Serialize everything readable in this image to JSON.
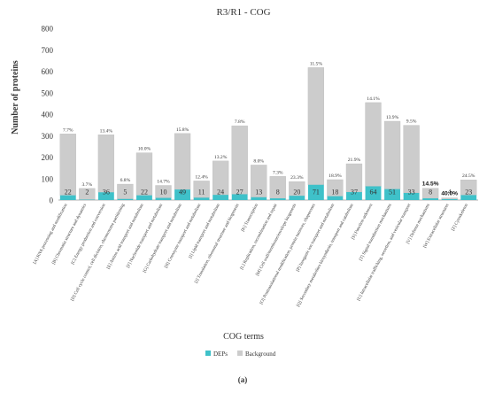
{
  "chart_data": {
    "type": "bar",
    "stacked": true,
    "title": "R3/R1 - COG",
    "xlabel": "COG terms",
    "ylabel": "Number of proteins",
    "ylim": [
      0,
      800
    ],
    "yticks": [
      0,
      100,
      200,
      300,
      400,
      500,
      600,
      700,
      800
    ],
    "grid": false,
    "legend_position": "bottom",
    "panel_label": "(a)",
    "categories": [
      "[A] RNA processing and modification",
      "[B] Chromatin structure and dynamics",
      "[C] Energy production and conversion",
      "[D] Cell cycle control, cell division, chromosome partitioning",
      "[E] Amino acid transport and metabolism",
      "[F] Nucleotide transport and metabolism",
      "[G] Carbohydrate transport and metabolism",
      "[H] Coenzyme transport and metabolism",
      "[I] Lipid transport and metabolism",
      "[J] Translation, ribosomal structure and biogenesis",
      "[K] Transcription",
      "[L] Replication, recombination and repair",
      "[M] Cell wall/membrane/envelope biogenesis",
      "[O] Posttranslational modification, protein turnover, chaperones",
      "[P] Inorganic ion transport and metabolism",
      "[Q] Secondary metabolites biosynthesis, transport and catabolism",
      "[S] Function unknown",
      "[T] Signal transduction mechanisms",
      "[U] Intracellular trafficking, secretion, and vesicular transport",
      "[V] Defense mechanisms",
      "[W] Extracellular structures",
      "[Z] Cytoskeleton"
    ],
    "series": [
      {
        "name": "DEPs",
        "color": "#3fc1c9",
        "values": [
          22,
          2,
          36,
          5,
          22,
          10,
          49,
          11,
          24,
          27,
          13,
          8,
          20,
          71,
          18,
          37,
          64,
          51,
          33,
          8,
          4,
          23
        ]
      },
      {
        "name": "Background",
        "color": "#cccccc",
        "values": [
          286,
          52,
          268,
          69,
          198,
          58,
          261,
          78,
          158,
          319,
          150,
          102,
          66,
          546,
          77,
          132,
          390,
          316,
          315,
          47,
          6,
          71
        ]
      }
    ],
    "bar_labels": [
      "22",
      "2",
      "36",
      "5",
      "22",
      "10",
      "49",
      "11",
      "24",
      "27",
      "13",
      "8",
      "20",
      "71",
      "18",
      "37",
      "64",
      "51",
      "33",
      "8",
      "4",
      "23"
    ],
    "percent_labels": [
      "7.7%",
      "3.7%",
      "13.4%",
      "6.8%",
      "10.0%",
      "14.7%",
      "15.8%",
      "12.4%",
      "13.2%",
      "7.8%",
      "8.0%",
      "7.3%",
      "23.3%",
      "11.5%",
      "18.9%",
      "21.9%",
      "14.1%",
      "13.9%",
      "9.5%",
      "14.5%",
      "40.0%",
      "24.5%"
    ],
    "bold_percent_indices": [
      19,
      20
    ]
  }
}
